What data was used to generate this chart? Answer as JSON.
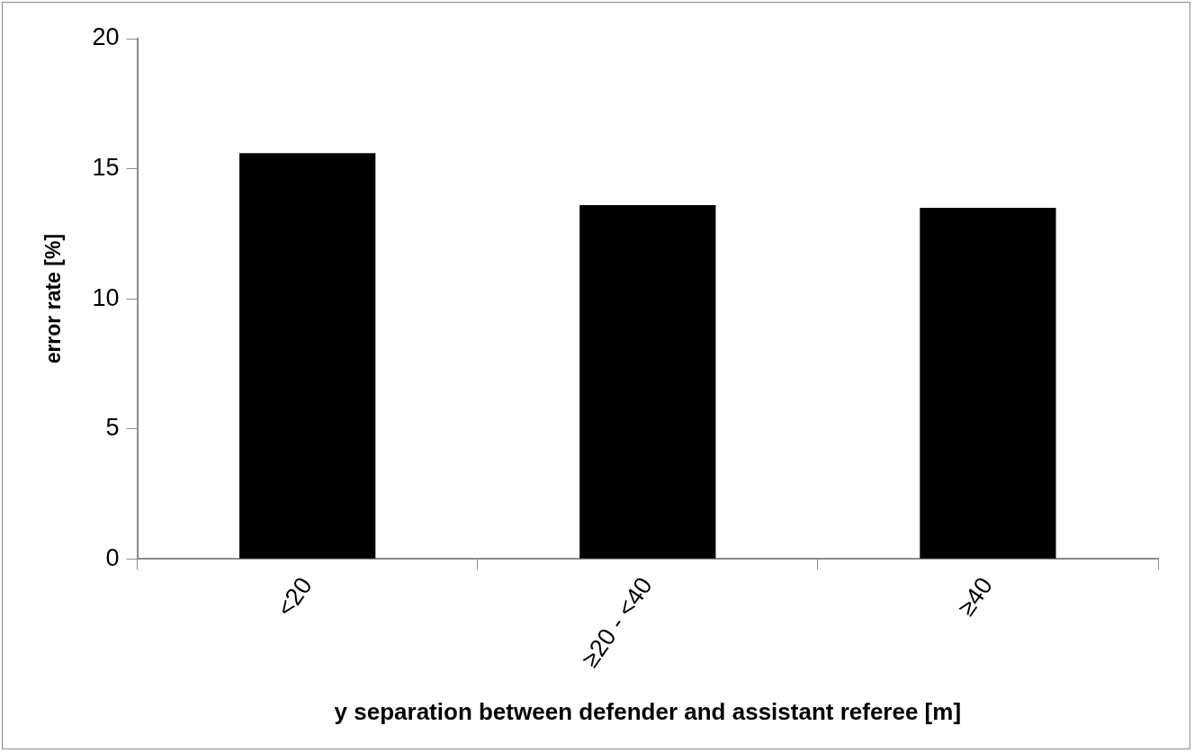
{
  "chart_data": {
    "type": "bar",
    "xlabel": "y separation between defender and assistant referee [m]",
    "ylabel": "error rate [%]",
    "categories": [
      "<20",
      "≥20 - <40",
      "≥40"
    ],
    "values": [
      15.6,
      13.6,
      13.5
    ],
    "color": "#000000",
    "ylim": [
      0,
      20
    ],
    "yticks": [
      0,
      5,
      10,
      15,
      20
    ],
    "grid": false,
    "legend": false
  }
}
